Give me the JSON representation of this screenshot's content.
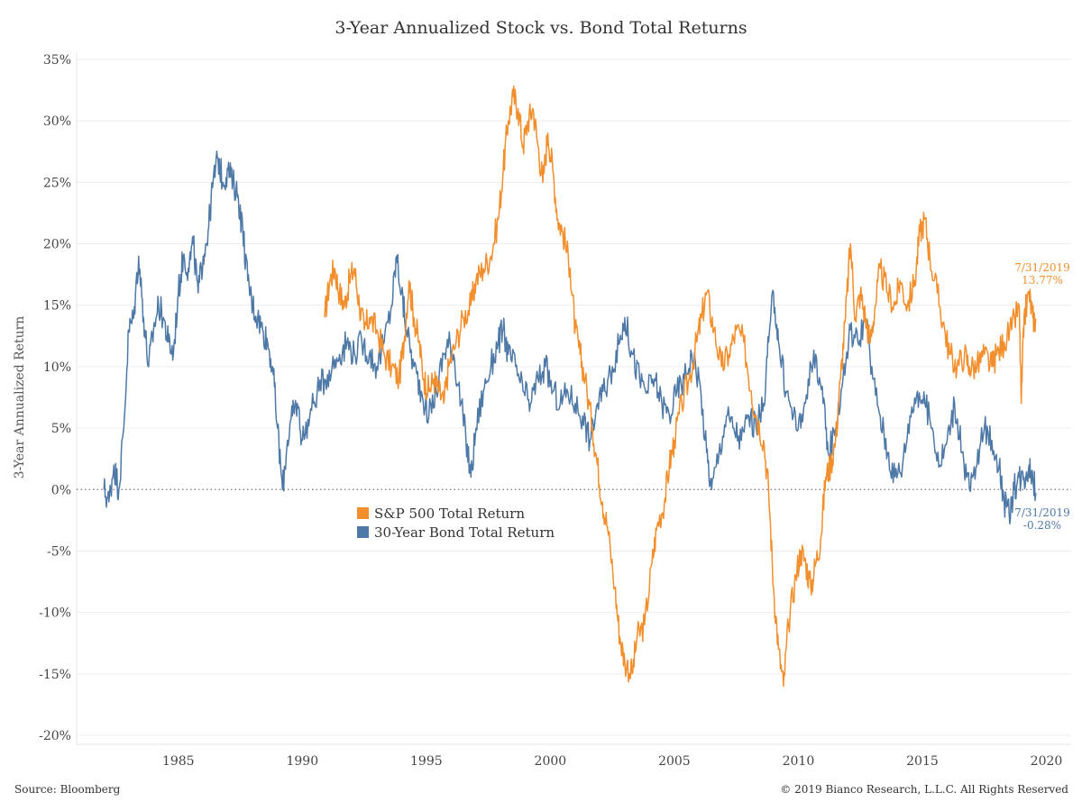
{
  "chart_data": {
    "type": "line",
    "title": "3-Year Annualized Stock vs. Bond Total Returns",
    "ylabel": "3-Year Annualized Return",
    "xlabel": "",
    "xlim": [
      1980.9,
      2021.0
    ],
    "ylim": [
      -20,
      35
    ],
    "x_ticks": [
      "1985",
      "1990",
      "1995",
      "2000",
      "2005",
      "2010",
      "2015",
      "2020"
    ],
    "y_ticks": [
      "35%",
      "30%",
      "25%",
      "20%",
      "15%",
      "10%",
      "5%",
      "0%",
      "-5%",
      "-10%",
      "-15%",
      "-20%"
    ],
    "grid": "horizontal",
    "legend_position": "center-left",
    "series": [
      {
        "name": "S&P 500 Total Return",
        "color": "#f28e2b",
        "points": [
          [
            1990.9,
            14
          ],
          [
            1991.1,
            17
          ],
          [
            1991.3,
            18
          ],
          [
            1991.5,
            16
          ],
          [
            1991.7,
            15
          ],
          [
            1991.9,
            17
          ],
          [
            1992.1,
            18
          ],
          [
            1992.3,
            15
          ],
          [
            1992.5,
            13
          ],
          [
            1992.7,
            14
          ],
          [
            1993.0,
            13
          ],
          [
            1993.3,
            11
          ],
          [
            1993.6,
            10
          ],
          [
            1993.9,
            9
          ],
          [
            1994.1,
            12
          ],
          [
            1994.3,
            17
          ],
          [
            1994.5,
            14
          ],
          [
            1994.7,
            12
          ],
          [
            1994.9,
            9
          ],
          [
            1995.1,
            8
          ],
          [
            1995.3,
            9
          ],
          [
            1995.5,
            8
          ],
          [
            1995.7,
            7
          ],
          [
            1995.9,
            10
          ],
          [
            1996.2,
            12
          ],
          [
            1996.5,
            14
          ],
          [
            1996.8,
            15
          ],
          [
            1997.0,
            17
          ],
          [
            1997.3,
            18
          ],
          [
            1997.6,
            19
          ],
          [
            1997.9,
            22
          ],
          [
            1998.1,
            26
          ],
          [
            1998.3,
            30
          ],
          [
            1998.5,
            32
          ],
          [
            1998.7,
            31
          ],
          [
            1998.9,
            28
          ],
          [
            1999.1,
            30
          ],
          [
            1999.3,
            31
          ],
          [
            1999.5,
            28
          ],
          [
            1999.7,
            25
          ],
          [
            1999.9,
            29
          ],
          [
            2000.1,
            26
          ],
          [
            2000.3,
            22
          ],
          [
            2000.5,
            21
          ],
          [
            2000.8,
            18
          ],
          [
            2001.0,
            13
          ],
          [
            2001.2,
            11
          ],
          [
            2001.4,
            9
          ],
          [
            2001.7,
            5
          ],
          [
            2001.9,
            2
          ],
          [
            2002.1,
            -1
          ],
          [
            2002.3,
            -3
          ],
          [
            2002.6,
            -8
          ],
          [
            2002.8,
            -12
          ],
          [
            2003.0,
            -14
          ],
          [
            2003.3,
            -15
          ],
          [
            2003.5,
            -12
          ],
          [
            2003.8,
            -11
          ],
          [
            2004.1,
            -6
          ],
          [
            2004.3,
            -3
          ],
          [
            2004.6,
            -1
          ],
          [
            2004.8,
            2
          ],
          [
            2005.0,
            4
          ],
          [
            2005.3,
            7
          ],
          [
            2005.6,
            9
          ],
          [
            2005.9,
            12
          ],
          [
            2006.1,
            14
          ],
          [
            2006.3,
            16
          ],
          [
            2006.6,
            13
          ],
          [
            2006.9,
            10
          ],
          [
            2007.2,
            11
          ],
          [
            2007.5,
            13
          ],
          [
            2007.8,
            12
          ],
          [
            2008.1,
            8
          ],
          [
            2008.3,
            6
          ],
          [
            2008.6,
            4
          ],
          [
            2008.8,
            0
          ],
          [
            2009.0,
            -8
          ],
          [
            2009.2,
            -13
          ],
          [
            2009.4,
            -16
          ],
          [
            2009.6,
            -11
          ],
          [
            2009.9,
            -7
          ],
          [
            2010.1,
            -5
          ],
          [
            2010.3,
            -6
          ],
          [
            2010.5,
            -8
          ],
          [
            2010.7,
            -6
          ],
          [
            2010.9,
            -4
          ],
          [
            2011.1,
            1
          ],
          [
            2011.3,
            2
          ],
          [
            2011.5,
            4
          ],
          [
            2011.7,
            9
          ],
          [
            2011.9,
            14
          ],
          [
            2012.1,
            20
          ],
          [
            2012.3,
            14
          ],
          [
            2012.5,
            16
          ],
          [
            2012.7,
            14
          ],
          [
            2012.9,
            12
          ],
          [
            2013.1,
            15
          ],
          [
            2013.3,
            18
          ],
          [
            2013.6,
            16
          ],
          [
            2013.9,
            15
          ],
          [
            2014.1,
            17
          ],
          [
            2014.4,
            15
          ],
          [
            2014.7,
            17
          ],
          [
            2014.9,
            21
          ],
          [
            2015.1,
            22
          ],
          [
            2015.3,
            19
          ],
          [
            2015.6,
            16
          ],
          [
            2015.9,
            13
          ],
          [
            2016.1,
            11
          ],
          [
            2016.4,
            10
          ],
          [
            2016.7,
            11
          ],
          [
            2016.9,
            10
          ],
          [
            2017.2,
            10
          ],
          [
            2017.5,
            11
          ],
          [
            2017.8,
            10
          ],
          [
            2018.0,
            11
          ],
          [
            2018.3,
            12
          ],
          [
            2018.6,
            13
          ],
          [
            2018.9,
            15
          ],
          [
            2018.99,
            7
          ],
          [
            2019.1,
            14
          ],
          [
            2019.3,
            16
          ],
          [
            2019.45,
            14
          ],
          [
            2019.58,
            13.77
          ]
        ]
      },
      {
        "name": "30-Year Bond Total Return",
        "color": "#4e79a7",
        "points": [
          [
            1982.0,
            0
          ],
          [
            1982.2,
            -1
          ],
          [
            1982.4,
            2
          ],
          [
            1982.6,
            0
          ],
          [
            1982.8,
            5
          ],
          [
            1983.0,
            13
          ],
          [
            1983.2,
            14
          ],
          [
            1983.4,
            19
          ],
          [
            1983.6,
            14
          ],
          [
            1983.8,
            10
          ],
          [
            1984.0,
            13
          ],
          [
            1984.2,
            15
          ],
          [
            1984.4,
            14
          ],
          [
            1984.6,
            12
          ],
          [
            1984.8,
            11
          ],
          [
            1985.0,
            16
          ],
          [
            1985.2,
            19
          ],
          [
            1985.4,
            18
          ],
          [
            1985.6,
            20
          ],
          [
            1985.8,
            16
          ],
          [
            1986.0,
            19
          ],
          [
            1986.2,
            21
          ],
          [
            1986.4,
            25
          ],
          [
            1986.6,
            27
          ],
          [
            1986.8,
            25
          ],
          [
            1987.0,
            26
          ],
          [
            1987.2,
            25
          ],
          [
            1987.4,
            24
          ],
          [
            1987.6,
            21
          ],
          [
            1987.8,
            17
          ],
          [
            1988.0,
            15
          ],
          [
            1988.2,
            14
          ],
          [
            1988.4,
            13
          ],
          [
            1988.6,
            12
          ],
          [
            1988.8,
            10
          ],
          [
            1989.0,
            5
          ],
          [
            1989.2,
            0
          ],
          [
            1989.4,
            4
          ],
          [
            1989.6,
            6
          ],
          [
            1989.8,
            7
          ],
          [
            1990.0,
            4
          ],
          [
            1990.3,
            6
          ],
          [
            1990.6,
            8
          ],
          [
            1990.9,
            9
          ],
          [
            1991.2,
            10
          ],
          [
            1991.5,
            11
          ],
          [
            1991.8,
            12
          ],
          [
            1992.1,
            11
          ],
          [
            1992.4,
            12
          ],
          [
            1992.7,
            11
          ],
          [
            1993.0,
            10
          ],
          [
            1993.3,
            12
          ],
          [
            1993.6,
            15
          ],
          [
            1993.8,
            19
          ],
          [
            1994.0,
            16
          ],
          [
            1994.2,
            13
          ],
          [
            1994.5,
            10
          ],
          [
            1994.8,
            8
          ],
          [
            1995.1,
            6
          ],
          [
            1995.4,
            8
          ],
          [
            1995.7,
            11
          ],
          [
            1995.9,
            12
          ],
          [
            1996.1,
            11
          ],
          [
            1996.4,
            7
          ],
          [
            1996.6,
            4
          ],
          [
            1996.8,
            1
          ],
          [
            1997.0,
            5
          ],
          [
            1997.3,
            8
          ],
          [
            1997.6,
            10
          ],
          [
            1997.9,
            12
          ],
          [
            1998.1,
            13
          ],
          [
            1998.3,
            11
          ],
          [
            1998.6,
            10
          ],
          [
            1998.9,
            8
          ],
          [
            1999.2,
            7
          ],
          [
            1999.5,
            9
          ],
          [
            1999.8,
            10
          ],
          [
            2000.1,
            8
          ],
          [
            2000.4,
            7
          ],
          [
            2000.7,
            8
          ],
          [
            2001.0,
            7
          ],
          [
            2001.3,
            6
          ],
          [
            2001.6,
            4
          ],
          [
            2001.9,
            7
          ],
          [
            2002.2,
            8
          ],
          [
            2002.5,
            10
          ],
          [
            2002.8,
            12
          ],
          [
            2003.0,
            14
          ],
          [
            2003.3,
            11
          ],
          [
            2003.6,
            9
          ],
          [
            2003.9,
            8
          ],
          [
            2004.2,
            9
          ],
          [
            2004.5,
            7
          ],
          [
            2004.8,
            6
          ],
          [
            2005.1,
            8
          ],
          [
            2005.4,
            9
          ],
          [
            2005.7,
            11
          ],
          [
            2006.0,
            9
          ],
          [
            2006.3,
            3
          ],
          [
            2006.5,
            0
          ],
          [
            2006.8,
            3
          ],
          [
            2007.1,
            6
          ],
          [
            2007.4,
            5
          ],
          [
            2007.7,
            4
          ],
          [
            2008.0,
            6
          ],
          [
            2008.3,
            5
          ],
          [
            2008.6,
            7
          ],
          [
            2008.8,
            12
          ],
          [
            2009.0,
            16
          ],
          [
            2009.2,
            12
          ],
          [
            2009.5,
            8
          ],
          [
            2009.8,
            6
          ],
          [
            2010.1,
            5
          ],
          [
            2010.4,
            9
          ],
          [
            2010.7,
            11
          ],
          [
            2011.0,
            7
          ],
          [
            2011.2,
            3
          ],
          [
            2011.5,
            5
          ],
          [
            2011.8,
            9
          ],
          [
            2012.1,
            13
          ],
          [
            2012.4,
            12
          ],
          [
            2012.7,
            14
          ],
          [
            2013.0,
            9
          ],
          [
            2013.3,
            6
          ],
          [
            2013.6,
            3
          ],
          [
            2013.9,
            1
          ],
          [
            2014.2,
            2
          ],
          [
            2014.5,
            6
          ],
          [
            2014.8,
            8
          ],
          [
            2015.1,
            7
          ],
          [
            2015.4,
            5
          ],
          [
            2015.7,
            2
          ],
          [
            2016.0,
            4
          ],
          [
            2016.3,
            7
          ],
          [
            2016.6,
            3
          ],
          [
            2016.9,
            0
          ],
          [
            2017.2,
            2
          ],
          [
            2017.5,
            5
          ],
          [
            2017.8,
            4
          ],
          [
            2018.1,
            2
          ],
          [
            2018.3,
            -1
          ],
          [
            2018.5,
            -2
          ],
          [
            2018.7,
            0
          ],
          [
            2018.9,
            1
          ],
          [
            2019.1,
            1
          ],
          [
            2019.3,
            2
          ],
          [
            2019.45,
            1
          ],
          [
            2019.58,
            -0.28
          ]
        ]
      }
    ],
    "annotations": [
      {
        "date": "7/31/2019",
        "value": "13.77%",
        "series": "S&P 500 Total Return"
      },
      {
        "date": "7/31/2019",
        "value": "-0.28%",
        "series": "30-Year Bond Total Return"
      }
    ]
  },
  "footer": {
    "source": "Source: Bloomberg",
    "copyright": "© 2019 Bianco Research, L.L.C. All Rights Reserved"
  }
}
